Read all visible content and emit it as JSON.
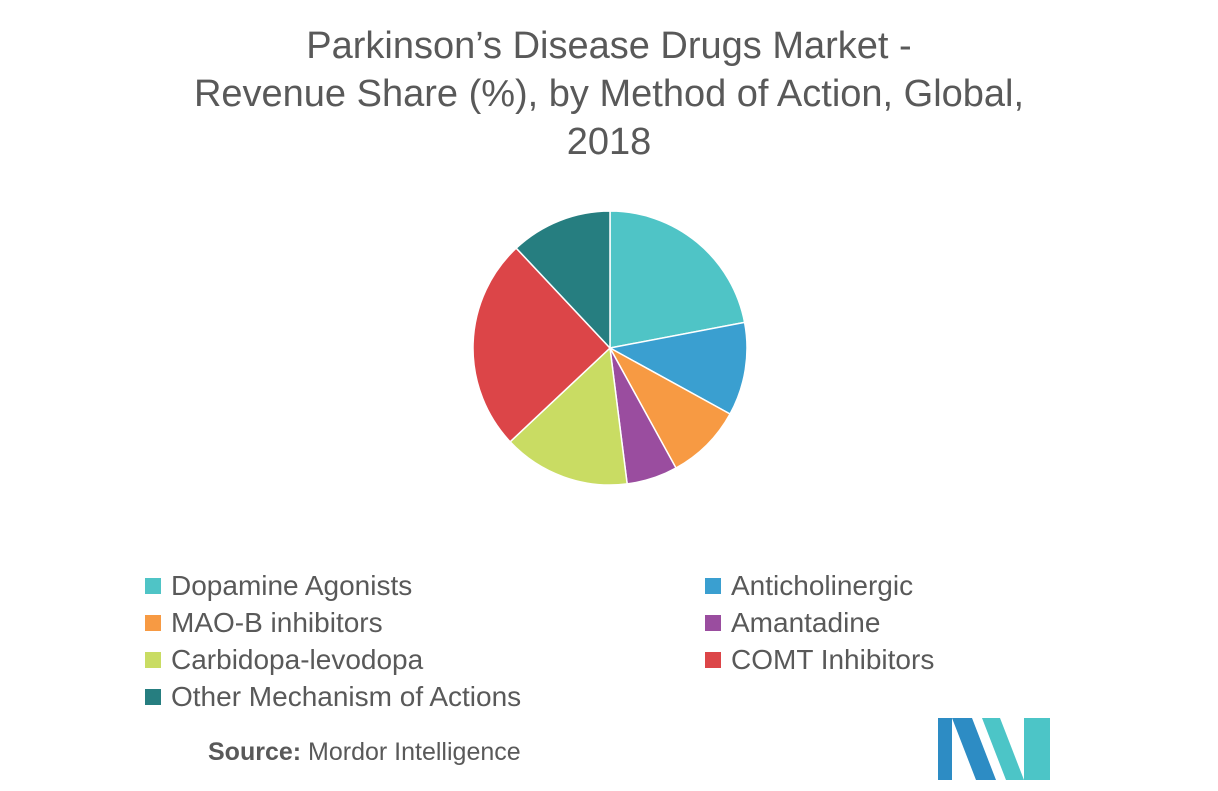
{
  "title_lines": [
    "Parkinson’s Disease Drugs Market -",
    "Revenue Share (%), by Method of Action, Global,",
    "2018"
  ],
  "chart_data": {
    "type": "pie",
    "title": "Parkinson’s Disease Drugs Market - Revenue Share (%), by Method of Action, Global, 2018",
    "legend_position": "bottom",
    "slices": [
      {
        "label": "Dopamine Agonists",
        "value": 22,
        "color": "#4fc4c6"
      },
      {
        "label": "Anticholinergic",
        "value": 11,
        "color": "#3a9fd0"
      },
      {
        "label": "MAO-B inhibitors",
        "value": 9,
        "color": "#f79a43"
      },
      {
        "label": "Amantadine",
        "value": 6,
        "color": "#9a4d9f"
      },
      {
        "label": "Carbidopa-levodopa",
        "value": 15,
        "color": "#c9dc63"
      },
      {
        "label": "COMT Inhibitors",
        "value": 25,
        "color": "#dc4548"
      },
      {
        "label": "Other Mechanism of Actions",
        "value": 12,
        "color": "#267e80"
      }
    ]
  },
  "source": {
    "label": "Source:",
    "text": "Mordor Intelligence"
  },
  "logo": {
    "icon": "mordor-intelligence-logo",
    "colors": [
      "#2d8cc4",
      "#4cc5c7"
    ]
  }
}
